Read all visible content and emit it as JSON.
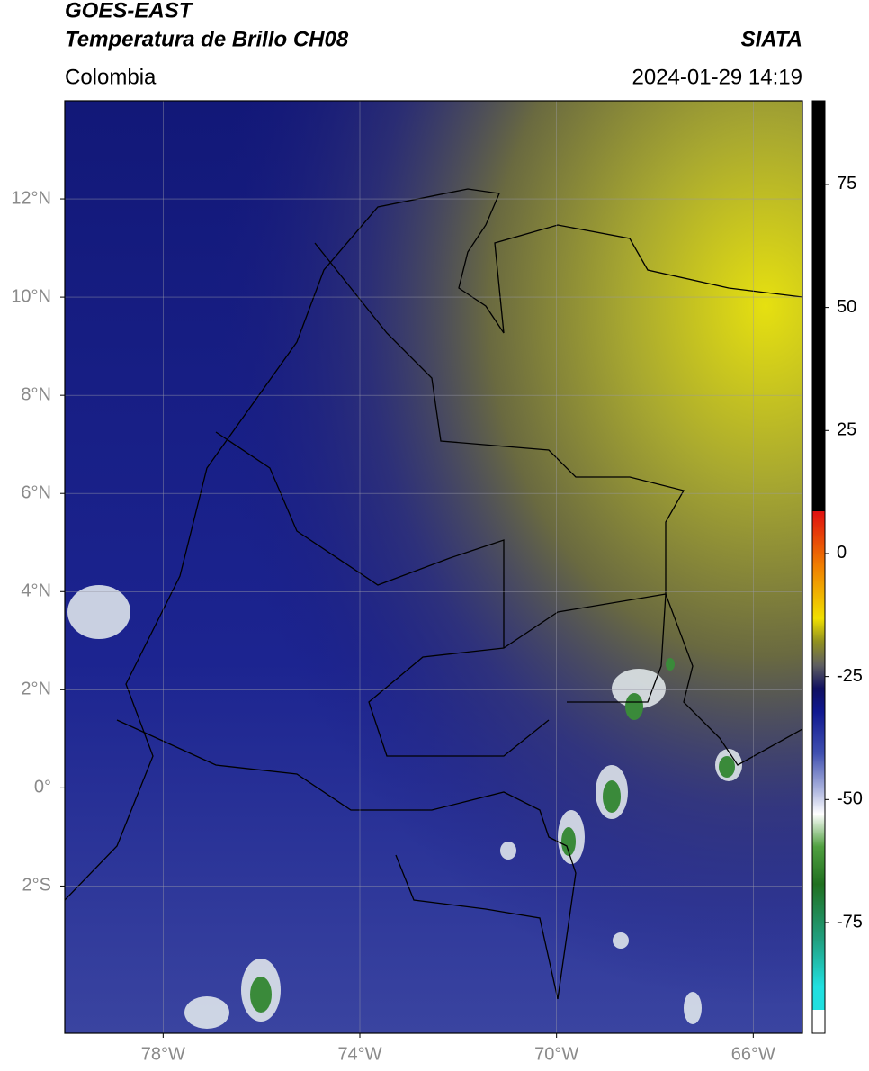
{
  "header": {
    "title": "GOES-EAST",
    "subtitle": "Temperatura de Brillo CH08",
    "source": "SIATA",
    "region": "Colombia",
    "datetime": "2024-01-29 14:19"
  },
  "map": {
    "xlim": [
      -80,
      -65
    ],
    "ylim": [
      -5,
      14
    ],
    "xticks": [
      {
        "value": -78,
        "label": "78°W"
      },
      {
        "value": -74,
        "label": "74°W"
      },
      {
        "value": -70,
        "label": "70°W"
      },
      {
        "value": -66,
        "label": "66°W"
      }
    ],
    "yticks": [
      {
        "value": 12,
        "label": "12°N"
      },
      {
        "value": 10,
        "label": "10°N"
      },
      {
        "value": 8,
        "label": "8°N"
      },
      {
        "value": 6,
        "label": "6°N"
      },
      {
        "value": 4,
        "label": "4°N"
      },
      {
        "value": 2,
        "label": "2°N"
      },
      {
        "value": 0,
        "label": "0°"
      },
      {
        "value": -2,
        "label": "2°S"
      }
    ],
    "grid": true
  },
  "colorbar": {
    "lim": [
      -97.5,
      92
    ],
    "ticks": [
      75,
      50,
      25,
      0,
      -25,
      -50,
      -75
    ]
  }
}
